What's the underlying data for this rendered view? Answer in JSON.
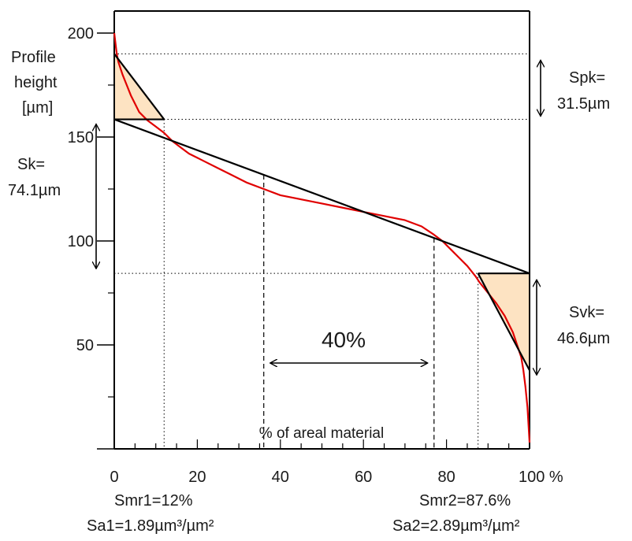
{
  "chart_data": {
    "type": "line",
    "title": "",
    "ylabel_lines": [
      "Profile",
      "height",
      "[µm]"
    ],
    "xlabel": "% of areal material",
    "xlim": [
      0,
      100
    ],
    "ylim": [
      0,
      200
    ],
    "x_ticks": [
      0,
      20,
      40,
      60,
      80,
      100
    ],
    "x_tick_labels": [
      "0",
      "20",
      "40",
      "60",
      "80",
      "100 %"
    ],
    "y_ticks": [
      50,
      100,
      150,
      200
    ],
    "y_tick_labels": [
      "50",
      "100",
      "150",
      "200"
    ],
    "grid": false,
    "series": [
      {
        "color": "#e00000",
        "x": [
          0,
          0.3,
          0.6,
          1,
          2,
          3,
          4,
          5,
          6,
          8,
          10,
          12,
          14,
          16,
          18,
          20,
          22,
          25,
          28,
          32,
          36,
          40,
          45,
          50,
          55,
          60,
          65,
          70,
          74,
          77,
          79,
          81,
          83,
          85,
          87,
          88,
          90,
          92,
          94,
          96,
          97,
          98,
          98.5,
          99,
          99.5,
          100
        ],
        "y": [
          200,
          195,
          190,
          186,
          180,
          175,
          170,
          166,
          162,
          158,
          155,
          152,
          148,
          145,
          142,
          140,
          138,
          135,
          132,
          128,
          125,
          122,
          120,
          118,
          116,
          114,
          112,
          110,
          107,
          103,
          100,
          96,
          92,
          88,
          83,
          80,
          75,
          70,
          64,
          56,
          50,
          44,
          38,
          30,
          20,
          3
        ]
      }
    ],
    "core_line": {
      "x": [
        0,
        100
      ],
      "y": [
        158.5,
        84.4
      ]
    },
    "peak_triangle": {
      "x": [
        0,
        0,
        12
      ],
      "y": [
        190,
        158.5,
        158.5
      ]
    },
    "valley_triangle": {
      "x": [
        87.6,
        100,
        100
      ],
      "y": [
        84.4,
        84.4,
        37.8
      ]
    },
    "guides": {
      "peak_top_y": 190,
      "core_top_y": 158.5,
      "core_bottom_y": 84.4,
      "smr1_x": 12,
      "smr2_x": 87.6,
      "window_x": [
        36,
        77
      ]
    },
    "annotations": {
      "spk": [
        "Spk=",
        "31.5µm"
      ],
      "sk": [
        "Sk=",
        "74.1µm"
      ],
      "svk": [
        "Svk=",
        "46.6µm"
      ],
      "window": "40%",
      "smr1": "Smr1=12%",
      "sa1": "Sa1=1.89µm³/µm²",
      "smr2": "Smr2=87.6%",
      "sa2": "Sa2=2.89µm³/µm²"
    },
    "colors": {
      "curve": "#e00000",
      "fill": "#fde3c2",
      "line": "#000000"
    }
  }
}
